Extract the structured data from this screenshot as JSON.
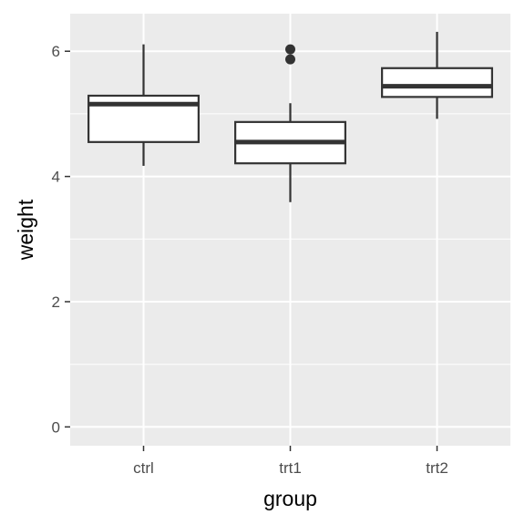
{
  "chart_data": {
    "type": "boxplot",
    "xlabel": "group",
    "ylabel": "weight",
    "ylim": [
      -0.3,
      6.6
    ],
    "y_ticks": [
      0,
      2,
      4,
      6
    ],
    "y_minor_ticks": [
      1,
      3,
      5
    ],
    "grid": true,
    "legend": "none",
    "categories": [
      "ctrl",
      "trt1",
      "trt2"
    ],
    "boxes": [
      {
        "category": "ctrl",
        "whisker_low": 4.17,
        "q1": 4.55,
        "median": 5.155,
        "q3": 5.29,
        "whisker_high": 6.11,
        "outliers": []
      },
      {
        "category": "trt1",
        "whisker_low": 3.59,
        "q1": 4.21,
        "median": 4.55,
        "q3": 4.87,
        "whisker_high": 5.17,
        "outliers": [
          5.87,
          6.03
        ]
      },
      {
        "category": "trt2",
        "whisker_low": 4.92,
        "q1": 5.27,
        "median": 5.44,
        "q3": 5.73,
        "whisker_high": 6.31,
        "outliers": []
      }
    ],
    "colors": {
      "panel": "#ebebeb",
      "grid": "#ffffff",
      "box_fill": "#ffffff",
      "box_stroke": "#333333",
      "axis_text": "#4d4d4d"
    }
  }
}
